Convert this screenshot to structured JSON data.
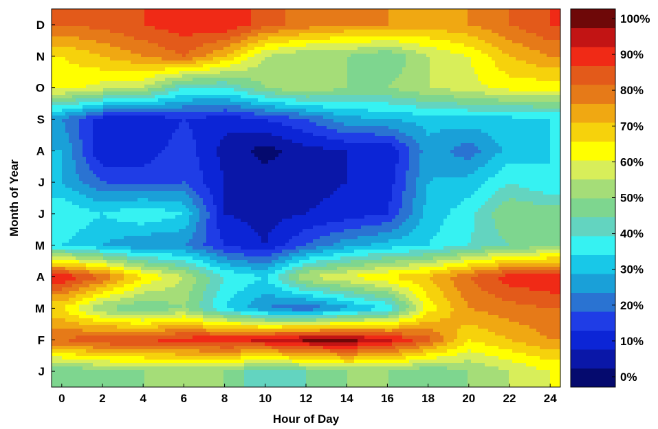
{
  "chart_data": {
    "type": "heatmap",
    "style": "filled-contour",
    "title": "",
    "xlabel": "Hour of Day",
    "ylabel": "Month of Year",
    "x": [
      0,
      2,
      4,
      6,
      8,
      10,
      12,
      14,
      16,
      18,
      20,
      22,
      24
    ],
    "y": [
      "J",
      "F",
      "M",
      "A",
      "M",
      "J",
      "J",
      "A",
      "S",
      "O",
      "N",
      "D"
    ],
    "x_tick_labels": [
      "0",
      "2",
      "4",
      "6",
      "8",
      "10",
      "12",
      "14",
      "16",
      "18",
      "20",
      "22",
      "24"
    ],
    "y_tick_labels": [
      "J",
      "F",
      "M",
      "A",
      "M",
      "J",
      "J",
      "A",
      "S",
      "O",
      "N",
      "D"
    ],
    "xlim": [
      -0.5,
      24.5
    ],
    "ylim": [
      0.5,
      12.5
    ],
    "z_unit": "%",
    "z": [
      [
        45,
        48,
        50,
        50,
        50,
        40,
        45,
        50,
        50,
        45,
        50,
        55,
        60
      ],
      [
        80,
        85,
        85,
        88,
        90,
        92,
        97,
        98,
        92,
        82,
        65,
        70,
        75
      ],
      [
        65,
        50,
        45,
        50,
        35,
        25,
        20,
        28,
        35,
        62,
        75,
        78,
        80
      ],
      [
        90,
        80,
        65,
        55,
        40,
        35,
        55,
        60,
        65,
        70,
        80,
        88,
        90
      ],
      [
        35,
        30,
        25,
        25,
        15,
        10,
        20,
        28,
        32,
        35,
        40,
        45,
        48
      ],
      [
        40,
        35,
        40,
        35,
        10,
        8,
        10,
        12,
        15,
        32,
        38,
        50,
        48
      ],
      [
        30,
        20,
        18,
        20,
        10,
        8,
        8,
        10,
        12,
        30,
        32,
        40,
        35
      ],
      [
        30,
        10,
        12,
        18,
        8,
        3,
        8,
        10,
        10,
        28,
        22,
        32,
        35
      ],
      [
        25,
        12,
        10,
        15,
        12,
        15,
        20,
        28,
        30,
        32,
        33,
        33,
        35
      ],
      [
        62,
        58,
        55,
        40,
        40,
        50,
        55,
        50,
        50,
        55,
        58,
        62,
        62
      ],
      [
        65,
        70,
        75,
        80,
        70,
        55,
        50,
        50,
        45,
        55,
        60,
        70,
        75
      ],
      [
        80,
        82,
        85,
        88,
        90,
        82,
        78,
        75,
        75,
        72,
        75,
        80,
        85
      ]
    ],
    "colorbar": {
      "ticks": [
        "0%",
        "10%",
        "20%",
        "30%",
        "40%",
        "50%",
        "60%",
        "70%",
        "80%",
        "90%",
        "100%"
      ],
      "range": [
        0,
        100
      ],
      "levels": 20,
      "colors": [
        "#050a6e",
        "#0a17a8",
        "#0c25d6",
        "#1f3de6",
        "#2a73d2",
        "#1aa0d8",
        "#18c8e8",
        "#36f2f2",
        "#63d4c0",
        "#7ed68f",
        "#a5dd78",
        "#d8ee5a",
        "#ffff00",
        "#f6d20c",
        "#f0a812",
        "#e67a18",
        "#e35a1a",
        "#f02a16",
        "#c21414",
        "#6e0808"
      ]
    }
  }
}
